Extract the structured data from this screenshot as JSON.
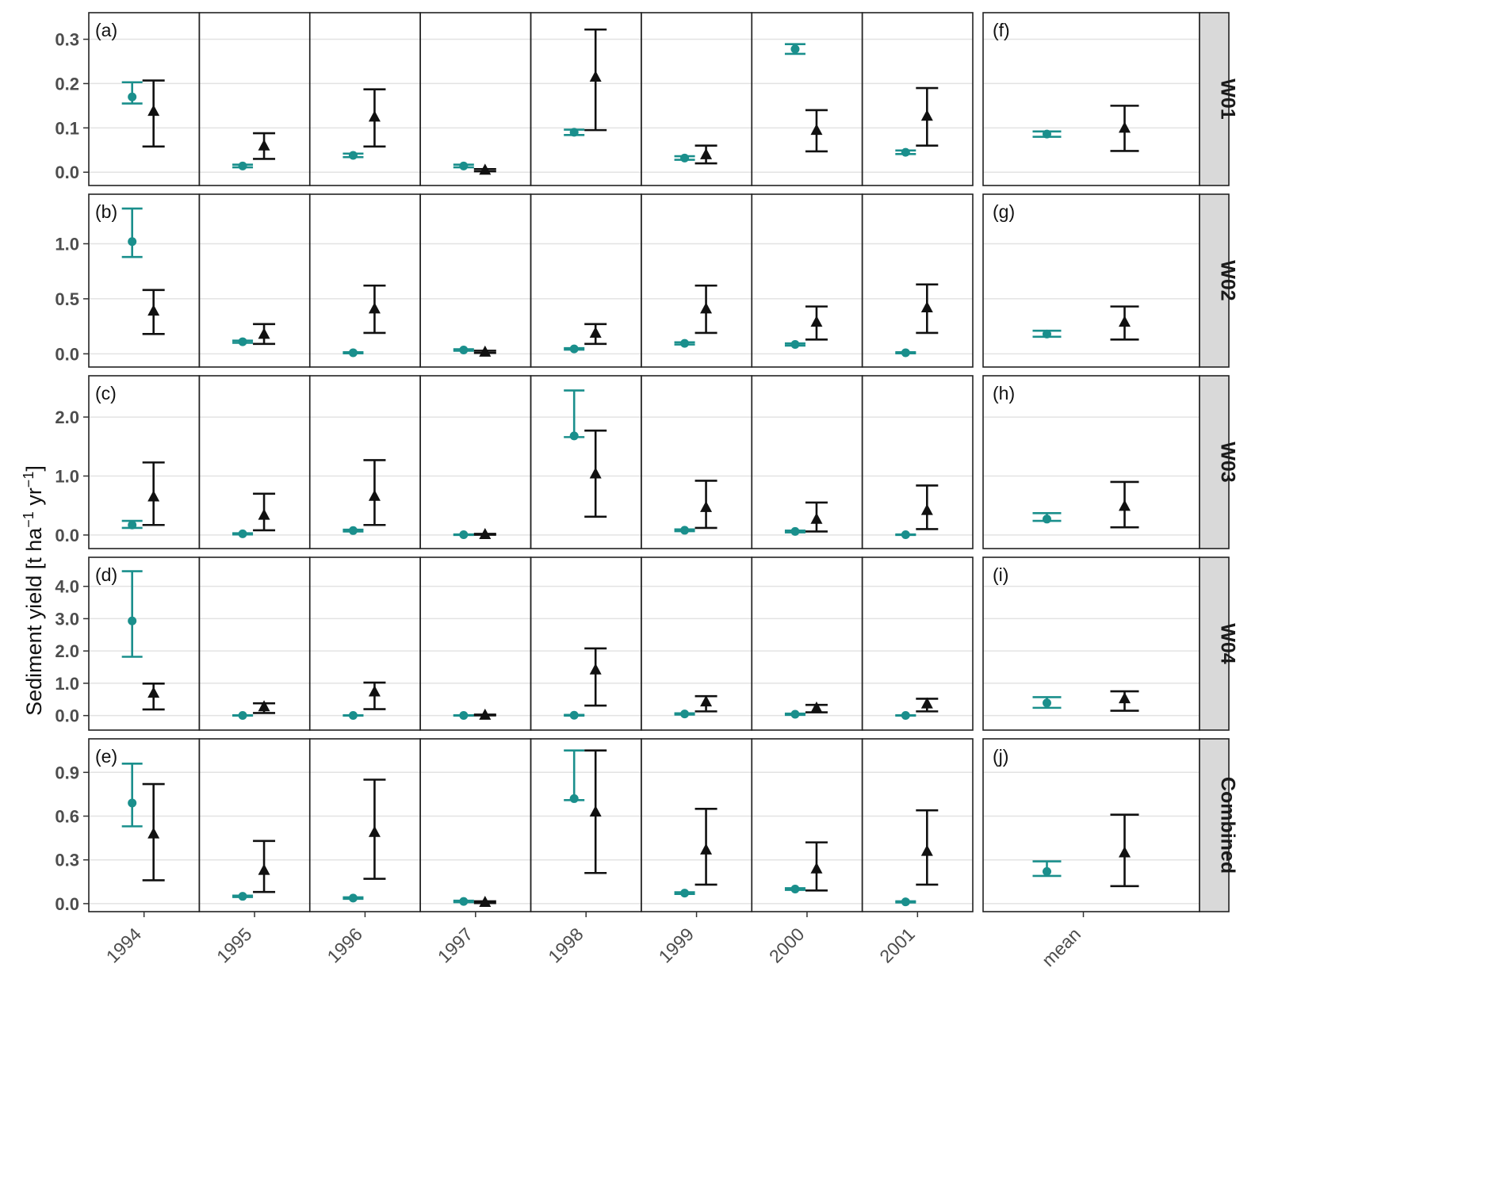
{
  "chart_data": {
    "type": "scatter",
    "ylabel_main": "Sediment yield [t ha",
    "ylabel_sup1": "−1",
    "ylabel_mid": " yr",
    "ylabel_sup2": "−1",
    "ylabel_end": "]",
    "years": [
      "1994",
      "1995",
      "1996",
      "1997",
      "1998",
      "1999",
      "2000",
      "2001"
    ],
    "mean_label": "mean",
    "colors": {
      "observed": "#1a8f8c",
      "modeled": "#111111",
      "strip": "#d9d9d9",
      "grid": "#e3e3e3"
    },
    "series_markers": {
      "observed": "circle",
      "modeled": "triangle"
    },
    "rows": [
      {
        "strip": "W01",
        "ylim": [
          -0.03,
          0.36
        ],
        "ticks": [
          0.0,
          0.1,
          0.2,
          0.3
        ],
        "tick_labels": [
          "0.0",
          "0.1",
          "0.2",
          "0.3"
        ],
        "panel_year": "(a)",
        "panel_mean": "(f)",
        "observed": [
          {
            "y": 0.17,
            "lo": 0.155,
            "hi": 0.203
          },
          {
            "y": 0.014,
            "lo": 0.011,
            "hi": 0.017
          },
          {
            "y": 0.038,
            "lo": 0.034,
            "hi": 0.042
          },
          {
            "y": 0.014,
            "lo": 0.011,
            "hi": 0.017
          },
          {
            "y": 0.09,
            "lo": 0.084,
            "hi": 0.096
          },
          {
            "y": 0.032,
            "lo": 0.028,
            "hi": 0.036
          },
          {
            "y": 0.278,
            "lo": 0.267,
            "hi": 0.289
          },
          {
            "y": 0.045,
            "lo": 0.041,
            "hi": 0.049
          }
        ],
        "modeled": [
          {
            "y": 0.138,
            "lo": 0.058,
            "hi": 0.207
          },
          {
            "y": 0.06,
            "lo": 0.03,
            "hi": 0.088
          },
          {
            "y": 0.125,
            "lo": 0.058,
            "hi": 0.187
          },
          {
            "y": 0.005,
            "lo": 0.002,
            "hi": 0.007
          },
          {
            "y": 0.215,
            "lo": 0.095,
            "hi": 0.322
          },
          {
            "y": 0.04,
            "lo": 0.02,
            "hi": 0.06
          },
          {
            "y": 0.095,
            "lo": 0.047,
            "hi": 0.14
          },
          {
            "y": 0.127,
            "lo": 0.06,
            "hi": 0.19
          }
        ],
        "mean_observed": {
          "y": 0.086,
          "lo": 0.08,
          "hi": 0.092
        },
        "mean_modeled": {
          "y": 0.1,
          "lo": 0.048,
          "hi": 0.15
        }
      },
      {
        "strip": "W02",
        "ylim": [
          -0.12,
          1.45
        ],
        "ticks": [
          0.0,
          0.5,
          1.0
        ],
        "tick_labels": [
          "0.0",
          "0.5",
          "1.0"
        ],
        "panel_year": "(b)",
        "panel_mean": "(g)",
        "observed": [
          {
            "y": 1.02,
            "lo": 0.88,
            "hi": 1.32
          },
          {
            "y": 0.11,
            "lo": 0.1,
            "hi": 0.12
          },
          {
            "y": 0.01,
            "lo": 0.005,
            "hi": 0.015
          },
          {
            "y": 0.035,
            "lo": 0.028,
            "hi": 0.042
          },
          {
            "y": 0.045,
            "lo": 0.038,
            "hi": 0.052
          },
          {
            "y": 0.095,
            "lo": 0.085,
            "hi": 0.105
          },
          {
            "y": 0.085,
            "lo": 0.075,
            "hi": 0.095
          },
          {
            "y": 0.01,
            "lo": 0.005,
            "hi": 0.015
          }
        ],
        "modeled": [
          {
            "y": 0.39,
            "lo": 0.18,
            "hi": 0.58
          },
          {
            "y": 0.18,
            "lo": 0.09,
            "hi": 0.27
          },
          {
            "y": 0.41,
            "lo": 0.19,
            "hi": 0.62
          },
          {
            "y": 0.018,
            "lo": 0.008,
            "hi": 0.028
          },
          {
            "y": 0.19,
            "lo": 0.09,
            "hi": 0.27
          },
          {
            "y": 0.41,
            "lo": 0.19,
            "hi": 0.62
          },
          {
            "y": 0.29,
            "lo": 0.13,
            "hi": 0.43
          },
          {
            "y": 0.42,
            "lo": 0.19,
            "hi": 0.63
          }
        ],
        "mean_observed": {
          "y": 0.18,
          "lo": 0.155,
          "hi": 0.21
        },
        "mean_modeled": {
          "y": 0.29,
          "lo": 0.13,
          "hi": 0.43
        }
      },
      {
        "strip": "W03",
        "ylim": [
          -0.23,
          2.7
        ],
        "ticks": [
          0.0,
          1.0,
          2.0
        ],
        "tick_labels": [
          "0.0",
          "1.0",
          "2.0"
        ],
        "panel_year": "(c)",
        "panel_mean": "(h)",
        "observed": [
          {
            "y": 0.17,
            "lo": 0.12,
            "hi": 0.24
          },
          {
            "y": 0.02,
            "lo": 0.01,
            "hi": 0.03
          },
          {
            "y": 0.075,
            "lo": 0.06,
            "hi": 0.09
          },
          {
            "y": 0.005,
            "lo": 0.0,
            "hi": 0.01
          },
          {
            "y": 1.68,
            "lo": 1.66,
            "hi": 2.45
          },
          {
            "y": 0.08,
            "lo": 0.065,
            "hi": 0.095
          },
          {
            "y": 0.06,
            "lo": 0.045,
            "hi": 0.075
          },
          {
            "y": 0.005,
            "lo": 0.0,
            "hi": 0.01
          }
        ],
        "modeled": [
          {
            "y": 0.65,
            "lo": 0.17,
            "hi": 1.23
          },
          {
            "y": 0.34,
            "lo": 0.08,
            "hi": 0.7
          },
          {
            "y": 0.66,
            "lo": 0.17,
            "hi": 1.27
          },
          {
            "y": 0.012,
            "lo": 0.004,
            "hi": 0.02
          },
          {
            "y": 1.04,
            "lo": 0.31,
            "hi": 1.77
          },
          {
            "y": 0.47,
            "lo": 0.12,
            "hi": 0.92
          },
          {
            "y": 0.27,
            "lo": 0.06,
            "hi": 0.55
          },
          {
            "y": 0.42,
            "lo": 0.1,
            "hi": 0.84
          }
        ],
        "mean_observed": {
          "y": 0.27,
          "lo": 0.24,
          "hi": 0.37
        },
        "mean_modeled": {
          "y": 0.49,
          "lo": 0.13,
          "hi": 0.9
        }
      },
      {
        "strip": "W04",
        "ylim": [
          -0.45,
          4.9
        ],
        "ticks": [
          0.0,
          1.0,
          2.0,
          3.0,
          4.0
        ],
        "tick_labels": [
          "0.0",
          "1.0",
          "2.0",
          "3.0",
          "4.0"
        ],
        "panel_year": "(d)",
        "panel_mean": "(i)",
        "observed": [
          {
            "y": 2.93,
            "lo": 1.82,
            "hi": 4.47
          },
          {
            "y": 0.005,
            "lo": 0.0,
            "hi": 0.01
          },
          {
            "y": 0.005,
            "lo": 0.0,
            "hi": 0.01
          },
          {
            "y": 0.005,
            "lo": 0.0,
            "hi": 0.01
          },
          {
            "y": 0.01,
            "lo": 0.0,
            "hi": 0.02
          },
          {
            "y": 0.05,
            "lo": 0.03,
            "hi": 0.07
          },
          {
            "y": 0.04,
            "lo": 0.02,
            "hi": 0.06
          },
          {
            "y": 0.005,
            "lo": 0.0,
            "hi": 0.01
          }
        ],
        "modeled": [
          {
            "y": 0.7,
            "lo": 0.19,
            "hi": 0.99
          },
          {
            "y": 0.28,
            "lo": 0.08,
            "hi": 0.38
          },
          {
            "y": 0.74,
            "lo": 0.2,
            "hi": 1.02
          },
          {
            "y": 0.02,
            "lo": 0.005,
            "hi": 0.03
          },
          {
            "y": 1.42,
            "lo": 0.31,
            "hi": 2.08
          },
          {
            "y": 0.43,
            "lo": 0.13,
            "hi": 0.6
          },
          {
            "y": 0.24,
            "lo": 0.1,
            "hi": 0.33
          },
          {
            "y": 0.37,
            "lo": 0.13,
            "hi": 0.52
          }
        ],
        "mean_observed": {
          "y": 0.39,
          "lo": 0.24,
          "hi": 0.57
        },
        "mean_modeled": {
          "y": 0.53,
          "lo": 0.15,
          "hi": 0.75
        }
      },
      {
        "strip": "Combined",
        "ylim": [
          -0.055,
          1.13
        ],
        "ticks": [
          0.0,
          0.3,
          0.6,
          0.9
        ],
        "tick_labels": [
          "0.0",
          "0.3",
          "0.6",
          "0.9"
        ],
        "panel_year": "(e)",
        "panel_mean": "(j)",
        "observed": [
          {
            "y": 0.69,
            "lo": 0.53,
            "hi": 0.96
          },
          {
            "y": 0.05,
            "lo": 0.045,
            "hi": 0.055
          },
          {
            "y": 0.038,
            "lo": 0.033,
            "hi": 0.043
          },
          {
            "y": 0.015,
            "lo": 0.01,
            "hi": 0.02
          },
          {
            "y": 0.72,
            "lo": 0.71,
            "hi": 1.05
          },
          {
            "y": 0.072,
            "lo": 0.066,
            "hi": 0.078
          },
          {
            "y": 0.1,
            "lo": 0.094,
            "hi": 0.106
          },
          {
            "y": 0.012,
            "lo": 0.008,
            "hi": 0.016
          }
        ],
        "modeled": [
          {
            "y": 0.48,
            "lo": 0.16,
            "hi": 0.82
          },
          {
            "y": 0.23,
            "lo": 0.08,
            "hi": 0.43
          },
          {
            "y": 0.49,
            "lo": 0.17,
            "hi": 0.85
          },
          {
            "y": 0.01,
            "lo": 0.004,
            "hi": 0.016
          },
          {
            "y": 0.63,
            "lo": 0.21,
            "hi": 1.05
          },
          {
            "y": 0.37,
            "lo": 0.13,
            "hi": 0.65
          },
          {
            "y": 0.24,
            "lo": 0.09,
            "hi": 0.42
          },
          {
            "y": 0.36,
            "lo": 0.13,
            "hi": 0.64
          }
        ],
        "mean_observed": {
          "y": 0.22,
          "lo": 0.19,
          "hi": 0.29
        },
        "mean_modeled": {
          "y": 0.35,
          "lo": 0.12,
          "hi": 0.61
        }
      }
    ]
  }
}
